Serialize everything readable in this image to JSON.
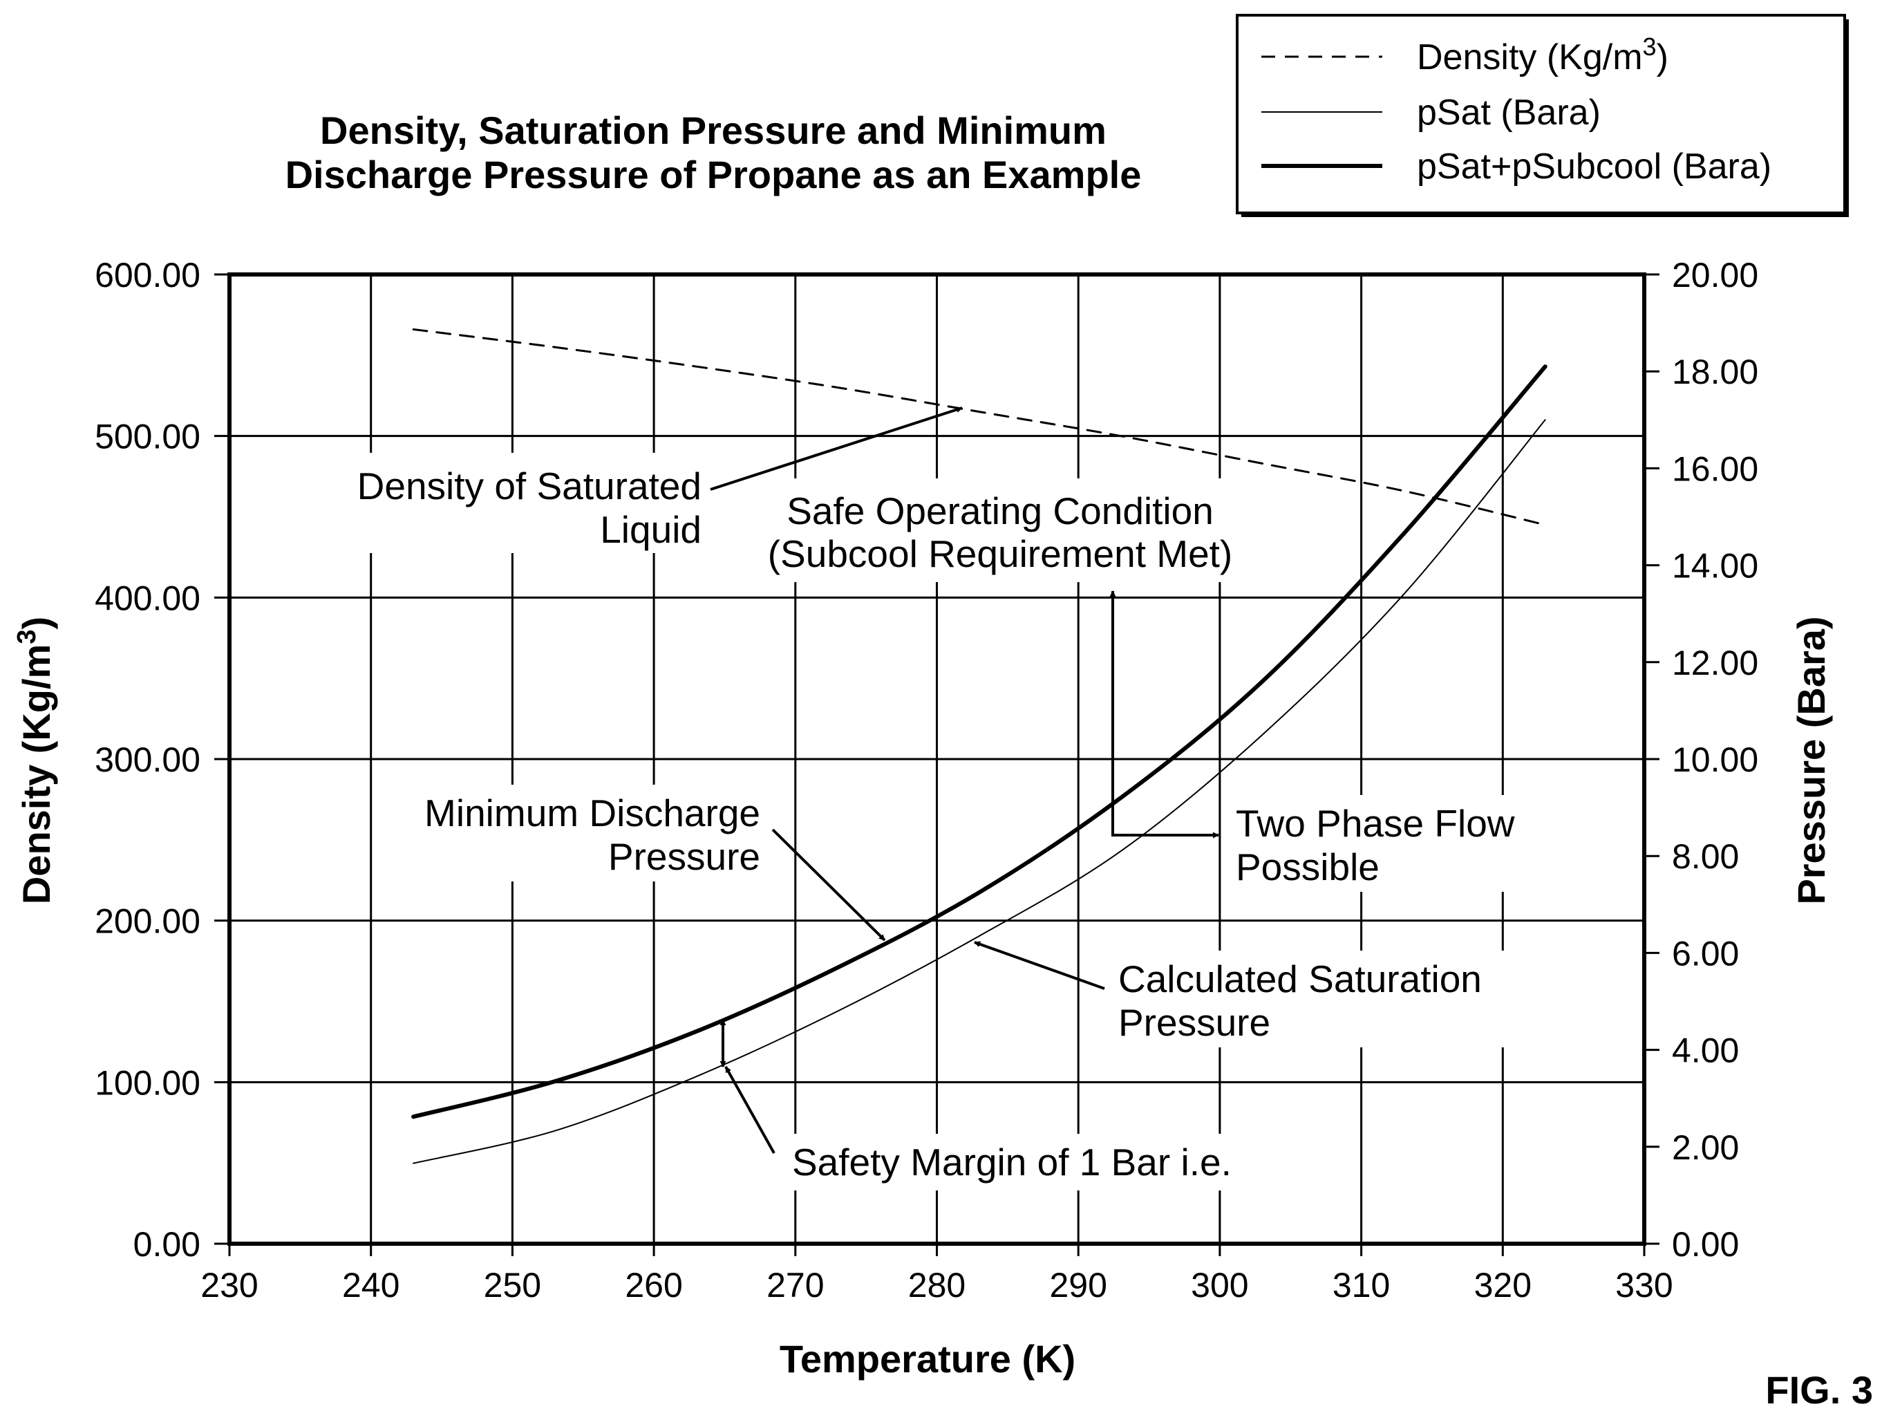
{
  "chart_data": {
    "type": "line",
    "title": [
      "Density, Saturation Pressure and Minimum",
      "Discharge Pressure of Propane as an Example"
    ],
    "xlabel": "Temperature (K)",
    "ylabel_left": "Density (Kg/m",
    "ylabel_left_sup": "3",
    "ylabel_left_close": ")",
    "ylabel_right": "Pressure (Bara)",
    "xlim": [
      230,
      330
    ],
    "ylim_left": [
      0,
      600
    ],
    "ylim_right": [
      0,
      20
    ],
    "x_ticks": [
      "230",
      "240",
      "250",
      "260",
      "270",
      "280",
      "290",
      "300",
      "310",
      "320",
      "330"
    ],
    "y_left_ticks": [
      "0.00",
      "100.00",
      "200.00",
      "300.00",
      "400.00",
      "500.00",
      "600.00"
    ],
    "y_right_ticks": [
      "0.00",
      "2.00",
      "4.00",
      "6.00",
      "8.00",
      "10.00",
      "12.00",
      "14.00",
      "16.00",
      "18.00",
      "20.00"
    ],
    "grid": true,
    "legend_position": "top-right",
    "series": [
      {
        "name": "Density (Kg/m",
        "name_sup": "3",
        "name_close": ")",
        "axis": "left",
        "style": "dashed",
        "x": [
          243,
          253,
          263,
          273,
          283,
          293,
          303,
          313,
          323
        ],
        "values": [
          566,
          555,
          543,
          530,
          515,
          500,
          483,
          466,
          445
        ]
      },
      {
        "name": "pSat (Bara)",
        "axis": "right",
        "style": "thin",
        "x": [
          243,
          253,
          263,
          273,
          283,
          293,
          303,
          313,
          323
        ],
        "values": [
          1.66,
          2.33,
          3.45,
          4.8,
          6.35,
          8.1,
          10.5,
          13.4,
          17.0
        ]
      },
      {
        "name": "pSat+pSubcool (Bara)",
        "axis": "right",
        "style": "thick",
        "x": [
          243,
          253,
          263,
          273,
          283,
          293,
          303,
          313,
          323
        ],
        "values": [
          2.62,
          3.35,
          4.38,
          5.7,
          7.25,
          9.2,
          11.6,
          14.65,
          18.1
        ]
      }
    ],
    "annotations": [
      {
        "lines": [
          "Density of Saturated",
          "Liquid"
        ]
      },
      {
        "lines": [
          "Safe Operating Condition",
          "(Subcool Requirement Met)"
        ]
      },
      {
        "lines": [
          "Minimum Discharge",
          "Pressure"
        ]
      },
      {
        "lines": [
          "Two Phase Flow",
          "Possible"
        ]
      },
      {
        "lines": [
          "Calculated Saturation",
          "Pressure"
        ]
      },
      {
        "lines": [
          "Safety Margin of 1 Bar i.e."
        ]
      }
    ]
  },
  "figure_label": "FIG. 3"
}
